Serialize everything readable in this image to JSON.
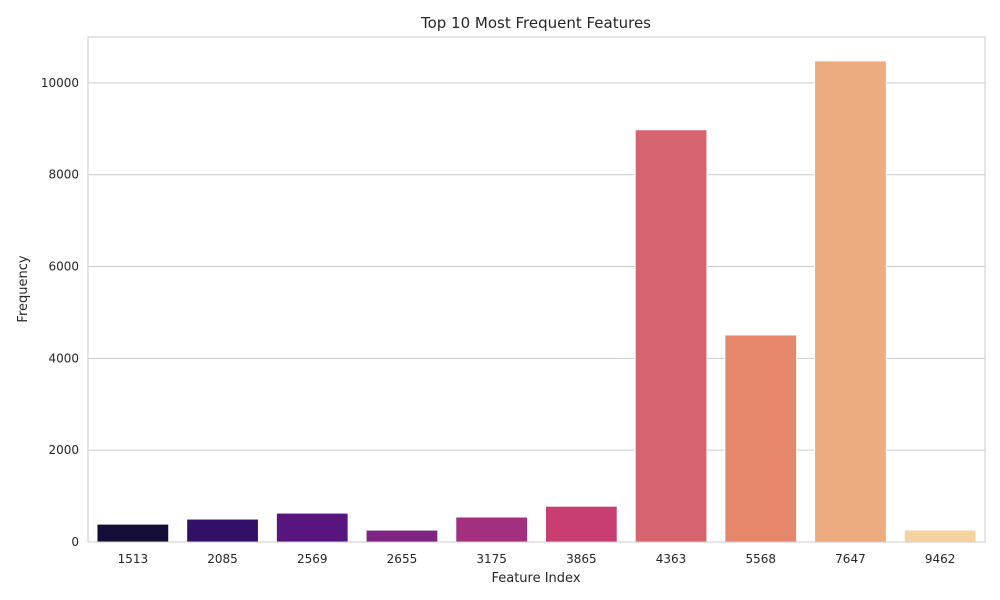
{
  "chart_data": {
    "type": "bar",
    "title": "Top 10 Most Frequent Features",
    "xlabel": "Feature Index",
    "ylabel": "Frequency",
    "categories": [
      "1513",
      "2085",
      "2569",
      "2655",
      "3175",
      "3865",
      "4363",
      "5568",
      "7647",
      "9462"
    ],
    "values": [
      390,
      500,
      630,
      260,
      545,
      780,
      8980,
      4510,
      10480,
      260
    ],
    "ylim": [
      0,
      11000
    ],
    "yticks": [
      0,
      2000,
      4000,
      6000,
      8000,
      10000
    ],
    "grid": "horizontal",
    "colors": [
      "#140e36",
      "#331067",
      "#59157e",
      "#7e2482",
      "#a3307e",
      "#c83e73",
      "#d6646f",
      "#e6876b",
      "#ecac7f",
      "#f6d2a1"
    ]
  }
}
